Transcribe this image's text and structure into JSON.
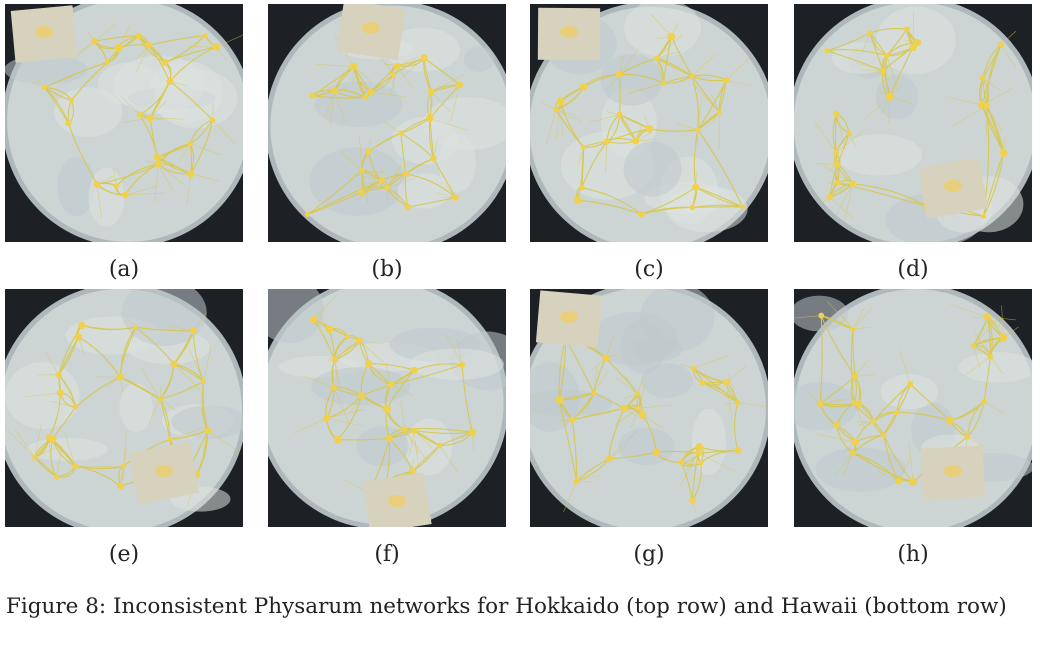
{
  "figure": {
    "caption": "Figure 8: Inconsistent Physarum networks for Hokkaido (top row) and Hawaii (bottom row)"
  },
  "panels": [
    {
      "label": "(a)",
      "seed": 11,
      "oat": "top-left",
      "row": "top"
    },
    {
      "label": "(b)",
      "seed": 23,
      "oat": "top-center",
      "row": "top"
    },
    {
      "label": "(c)",
      "seed": 37,
      "oat": "top-left",
      "row": "top"
    },
    {
      "label": "(d)",
      "seed": 49,
      "oat": "bottom-right",
      "row": "top"
    },
    {
      "label": "(e)",
      "seed": 58,
      "oat": "bottom-right",
      "row": "bottom"
    },
    {
      "label": "(f)",
      "seed": 71,
      "oat": "bottom-center",
      "row": "bottom"
    },
    {
      "label": "(g)",
      "seed": 83,
      "oat": "top-left",
      "row": "bottom"
    },
    {
      "label": "(h)",
      "seed": 97,
      "oat": "bottom-right",
      "row": "bottom"
    }
  ],
  "colors": {
    "agar": "#cdd4d4",
    "agar_edge": "#aeb8bb",
    "background": "#1d2126",
    "network": "#d8c84a",
    "node": "#f1d04c",
    "oat_paper": "#d7d2bd"
  }
}
